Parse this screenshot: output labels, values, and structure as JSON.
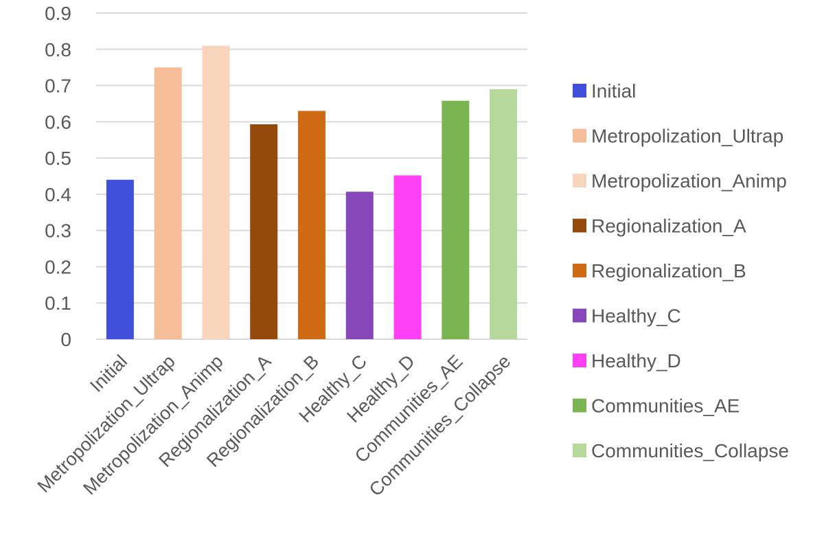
{
  "chart_data": {
    "type": "bar",
    "title": "",
    "xlabel": "",
    "ylabel": "",
    "ylim": [
      0,
      0.9
    ],
    "y_ticks": [
      "0",
      "0.1",
      "0.2",
      "0.3",
      "0.4",
      "0.5",
      "0.6",
      "0.7",
      "0.8",
      "0.9"
    ],
    "grid": true,
    "legend_position": "right",
    "categories": [
      "Initial",
      "Metropolization_Ultrap",
      "Metropolization_Animp",
      "Regionalization_A",
      "Regionalization_B",
      "Healthy_C",
      "Healthy_D",
      "Communities_AE",
      "Communities_Collapse"
    ],
    "values": [
      0.44,
      0.75,
      0.81,
      0.593,
      0.63,
      0.407,
      0.452,
      0.658,
      0.69
    ],
    "colors": [
      "#4150DB",
      "#F6BE98",
      "#F9D5BC",
      "#94490D",
      "#D06B15",
      "#8847B8",
      "#FF40F4",
      "#7BB552",
      "#B6D89B"
    ]
  }
}
